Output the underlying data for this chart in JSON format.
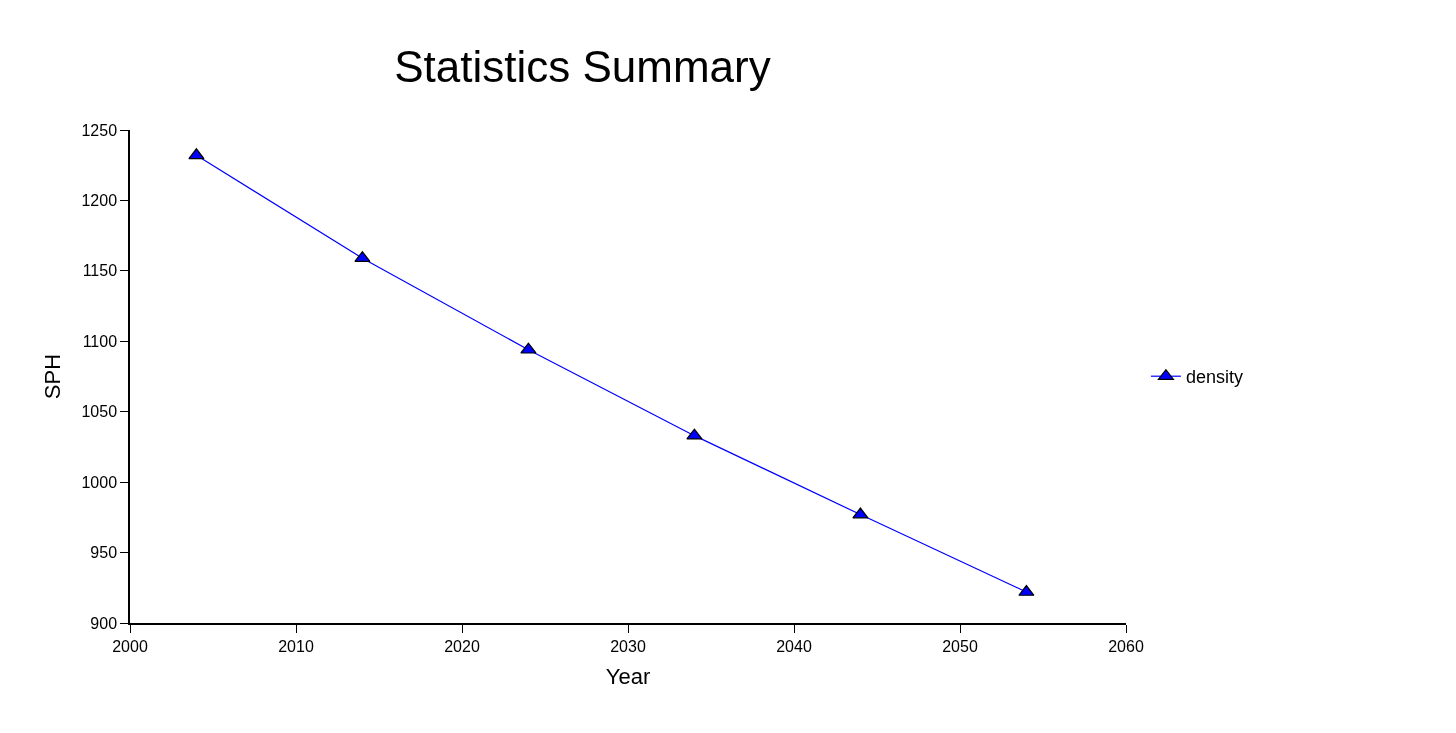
{
  "chart_data": {
    "type": "line",
    "title": "Statistics Summary",
    "xlabel": "Year",
    "ylabel": "SPH",
    "x": [
      2004,
      2014,
      2024,
      2034,
      2044,
      2054
    ],
    "series": [
      {
        "name": "density",
        "color": "#0000ff",
        "values": [
          1232,
          1159,
          1094,
          1033,
          977,
          922
        ]
      }
    ],
    "xlim": [
      2000,
      2060
    ],
    "xticks": [
      2000,
      2010,
      2020,
      2030,
      2040,
      2050,
      2060
    ],
    "ylim": [
      900,
      1250
    ],
    "yticks": [
      900,
      950,
      1000,
      1050,
      1100,
      1150,
      1200,
      1250
    ],
    "marker": "triangle",
    "line_style": "solid",
    "legend": "right"
  }
}
